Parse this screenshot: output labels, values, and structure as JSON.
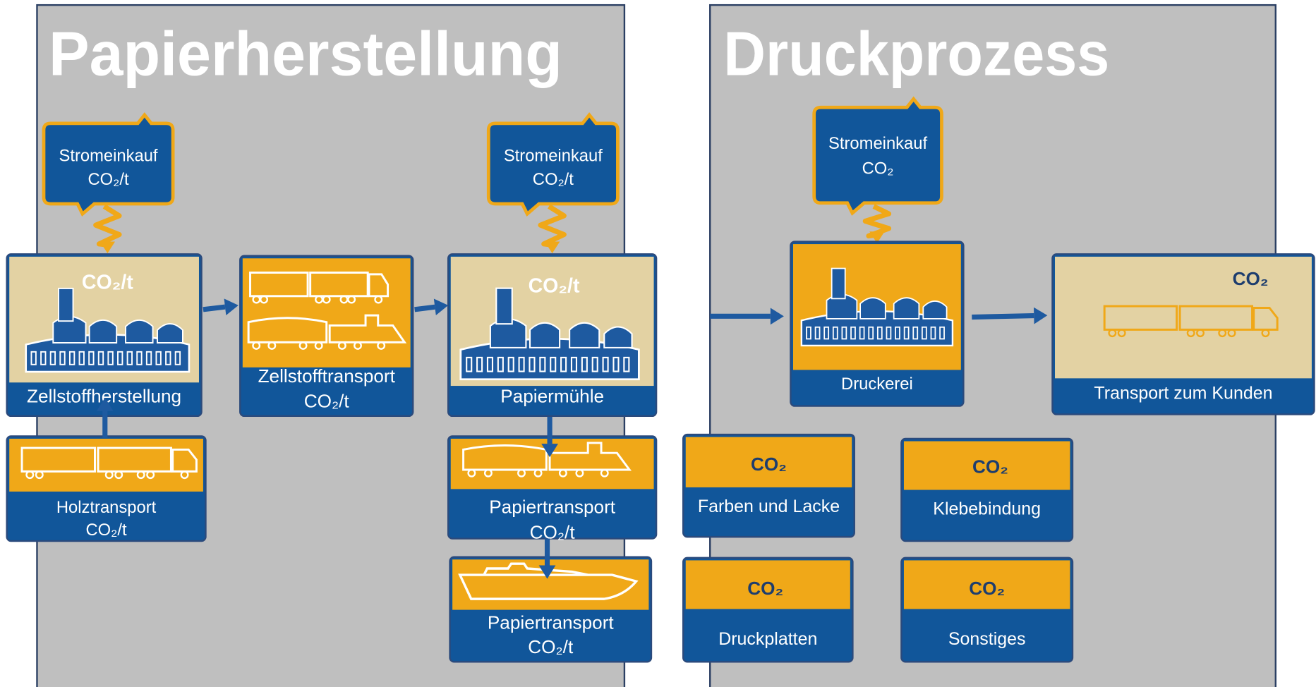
{
  "sections": [
    {
      "title": "Papierherstellung"
    },
    {
      "title": "Druckprozess"
    }
  ],
  "callouts": [
    {
      "label": "Stromeinkauf",
      "metric": "CO₂/t"
    },
    {
      "label": "Stromeinkauf",
      "metric": "CO₂/t"
    },
    {
      "label": "Stromeinkauf",
      "metric": "CO₂"
    }
  ],
  "nodes": [
    {
      "label": "Zellstoffherstellung",
      "metric": "CO₂/t"
    },
    {
      "label": "Zellstofftransport",
      "metric": "CO₂/t"
    },
    {
      "label": "Papiermühle",
      "metric": "CO₂/t"
    },
    {
      "label": "Holztransport",
      "metric": "CO₂/t"
    },
    {
      "label": "Papiertransport",
      "metric": "CO₂/t"
    },
    {
      "label": "Papiertransport",
      "metric": "CO₂/t"
    },
    {
      "label": "Druckerei"
    },
    {
      "label": "Transport zum Kunden",
      "metric": "CO₂"
    },
    {
      "label": "Farben und Lacke",
      "metric": "CO₂"
    },
    {
      "label": "Klebebindung",
      "metric": "CO₂"
    },
    {
      "label": "Druckplatten",
      "metric": "CO₂"
    },
    {
      "label": "Sonstiges",
      "metric": "CO₂"
    }
  ]
}
